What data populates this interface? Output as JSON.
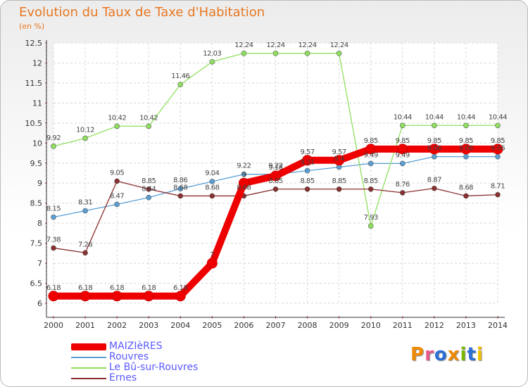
{
  "title": "Evolution du Taux de Taxe d'Habitation",
  "subtitle": "(en %)",
  "brand": {
    "text": "Proxiti",
    "colors": [
      "#f08a00",
      "#e85b8a",
      "#2c6fd6",
      "#f08a00",
      "#7ab800",
      "#2c6fd6",
      "#f0c000"
    ]
  },
  "chart_data": {
    "type": "line",
    "title": "Evolution du Taux de Taxe d'Habitation",
    "subtitle": "(en %)",
    "x": [
      "2000",
      "2001",
      "2002",
      "2003",
      "2004",
      "2005",
      "2006",
      "2007",
      "2008",
      "2009",
      "2010",
      "2011",
      "2012",
      "2013",
      "2014"
    ],
    "x_tick_labels": [
      "2000",
      "2001",
      "2002",
      "2003",
      "2004",
      "2005",
      "2006",
      "2007",
      "2008",
      "2009",
      "2010",
      "2011",
      "2012",
      "2013",
      "2014"
    ],
    "ylim": [
      6,
      12.5
    ],
    "y_ticks": [
      6,
      6.5,
      7,
      7.5,
      8,
      8.5,
      9,
      9.5,
      10,
      10.5,
      11,
      11.5,
      12,
      12.5
    ],
    "y_tick_labels": [
      "6",
      "6.5",
      "7",
      "7.5",
      "8",
      "8.5",
      "9",
      "9.5",
      "10",
      "10.5",
      "11",
      "11.5",
      "12",
      "12.5"
    ],
    "grid": true,
    "legend_position": "bottom-left",
    "series": [
      {
        "name": "MAIZIèRES",
        "color": "#ee0000",
        "values": [
          6.18,
          6.18,
          6.18,
          6.18,
          6.18,
          7,
          9,
          9.18,
          9.57,
          9.57,
          9.85,
          9.85,
          9.85,
          9.85,
          9.85
        ],
        "labels": [
          "6.18",
          "6.18",
          "6.18",
          "6.18",
          "6.18",
          "7",
          "9",
          "9.18",
          "9.57",
          "9.57",
          "9.85",
          "9.85",
          "9.85",
          "9.85",
          "9.85"
        ]
      },
      {
        "name": "Rouvres",
        "color": "#5a9fd4",
        "values": [
          8.15,
          8.31,
          8.47,
          8.64,
          8.86,
          9.04,
          9.22,
          9.22,
          9.31,
          9.4,
          9.49,
          9.49,
          9.66,
          9.66,
          9.66
        ],
        "labels": [
          "8.15",
          "8.31",
          "8.47",
          "8.64",
          "8.86",
          "9.04",
          "9.22",
          "9.22",
          "9.31",
          "9.4",
          "9.49",
          "9.49",
          "9.66",
          "9.66",
          "9.66"
        ]
      },
      {
        "name": "Le Bû-sur-Rouvres",
        "color": "#90e060",
        "values": [
          9.92,
          10.12,
          10.42,
          10.42,
          11.46,
          12.03,
          12.24,
          12.24,
          12.24,
          12.24,
          7.93,
          10.44,
          10.44,
          10.44,
          10.44
        ],
        "labels": [
          "9.92",
          "10.12",
          "10.42",
          "10.42",
          "11.46",
          "12.03",
          "12.24",
          "12.24",
          "12.24",
          "12.24",
          "7.93",
          "10.44",
          "10.44",
          "10.44",
          "10.44"
        ]
      },
      {
        "name": "Ernes",
        "color": "#8b2e2e",
        "values": [
          7.38,
          7.26,
          9.05,
          8.85,
          8.68,
          8.68,
          8.68,
          8.85,
          8.85,
          8.85,
          8.85,
          8.76,
          8.87,
          8.68,
          8.71
        ],
        "labels": [
          "7.38",
          "7.26",
          "9.05",
          "8.85",
          "8.68",
          "8.68",
          "8.68",
          "8.85",
          "8.85",
          "8.85",
          "8.85",
          "8.76",
          "8.87",
          "8.68",
          "8.71"
        ]
      }
    ]
  }
}
